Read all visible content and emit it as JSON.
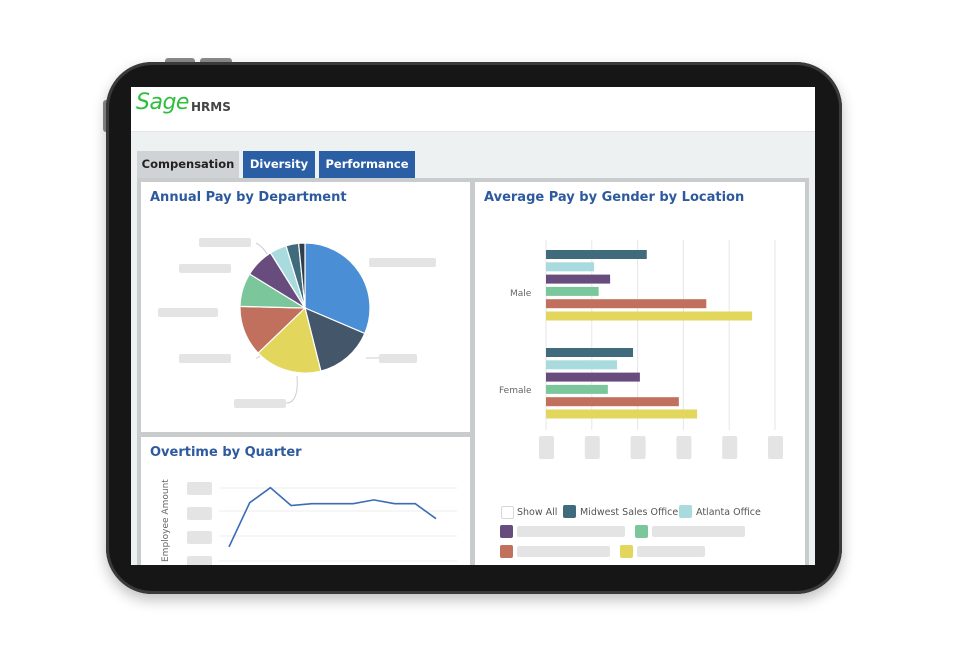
{
  "app": {
    "logo": "Sage",
    "name": "HRMS"
  },
  "tabs": [
    {
      "label": "Compensation",
      "active": true
    },
    {
      "label": "Diversity",
      "active": false
    },
    {
      "label": "Performance",
      "active": false
    }
  ],
  "panels": {
    "pay_by_department": {
      "title": "Annual Pay by Department"
    },
    "pay_by_gender": {
      "title": "Average Pay by Gender by Location",
      "groups": [
        "Male",
        "Female"
      ]
    },
    "overtime": {
      "title": "Overtime by Quarter",
      "ylabel": "Employee Amount"
    }
  },
  "legend": {
    "show_all": "Show All",
    "items": [
      "Midwest Sales Office",
      "Atlanta Office"
    ]
  },
  "colors": {
    "accent": "#2a5fa6",
    "title": "#2d5a9e",
    "brand": "#2fbd3d",
    "palette": [
      "#4a8fd6",
      "#44576a",
      "#e3d65d",
      "#c0705c",
      "#7bc79b",
      "#684c7e",
      "#a9dbde",
      "#3f6b7c",
      "#2f3e4c"
    ]
  },
  "chart_data": [
    {
      "type": "pie",
      "title": "Annual Pay by Department",
      "values": [
        30,
        14,
        16,
        12,
        8,
        7,
        4,
        3,
        1.5
      ],
      "colors": [
        "#4a8fd6",
        "#44576a",
        "#e3d65d",
        "#c0705c",
        "#7bc79b",
        "#684c7e",
        "#a9dbde",
        "#3f6b7c",
        "#2f3e4c"
      ]
    },
    {
      "type": "bar",
      "orientation": "horizontal",
      "title": "Average Pay by Gender by Location",
      "categories": [
        "Male",
        "Female"
      ],
      "series": [
        {
          "color": "#3f6b7c",
          "values": [
            22,
            19
          ]
        },
        {
          "color": "#a9dbde",
          "values": [
            10.5,
            15.5
          ]
        },
        {
          "color": "#684c7e",
          "values": [
            14,
            20.5
          ]
        },
        {
          "color": "#7bc79b",
          "values": [
            11.5,
            13.5
          ]
        },
        {
          "color": "#c0705c",
          "values": [
            35,
            29
          ]
        },
        {
          "color": "#e3d65d",
          "values": [
            45,
            33
          ]
        }
      ],
      "xlim": [
        0,
        50
      ],
      "grid": true
    },
    {
      "type": "line",
      "title": "Overtime by Quarter",
      "ylabel": "Employee Amount",
      "values": [
        15,
        62,
        78,
        59,
        61,
        61,
        61,
        65,
        61,
        61,
        45
      ],
      "ylim": [
        0,
        100
      ],
      "grid": true
    }
  ]
}
